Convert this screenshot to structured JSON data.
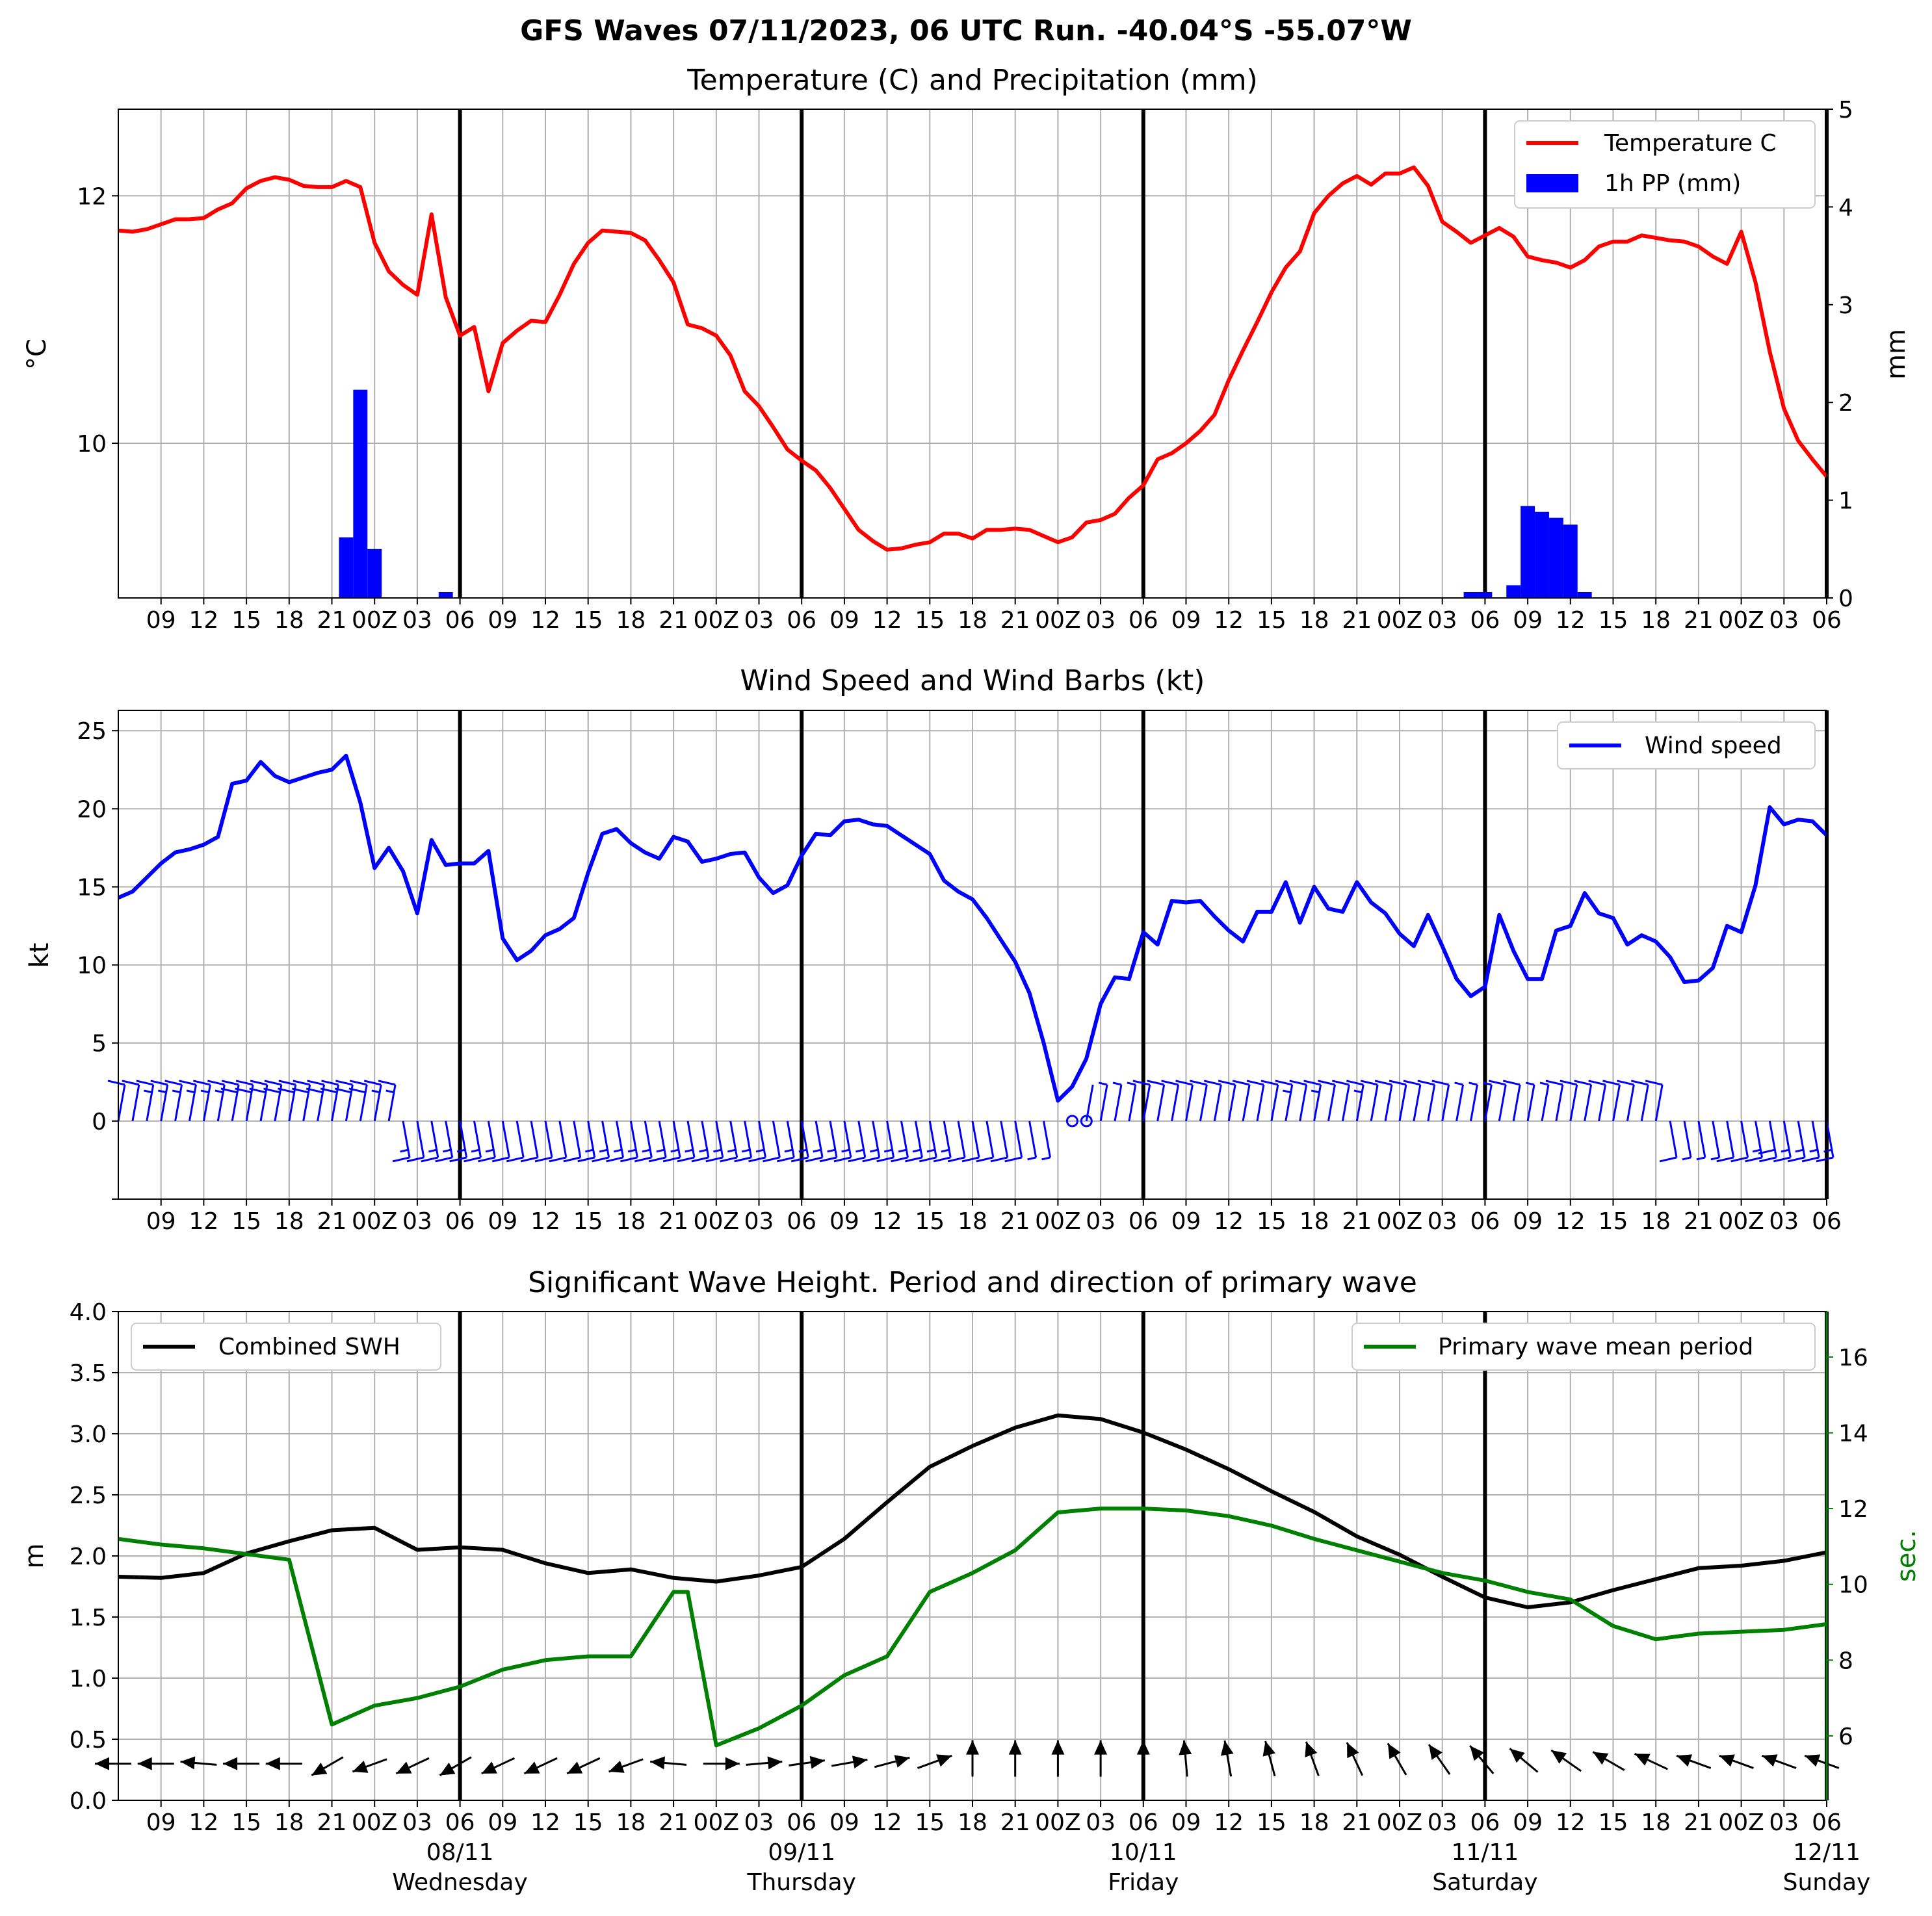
{
  "title": "GFS Waves 07/11/2023, 06 UTC Run. -40.04°S -55.07°W",
  "x_ticks": [
    "09",
    "12",
    "15",
    "18",
    "21",
    "00Z",
    "03",
    "06",
    "09",
    "12",
    "15",
    "18",
    "21",
    "00Z",
    "03",
    "06",
    "09",
    "12",
    "15",
    "18",
    "21",
    "00Z",
    "03",
    "06",
    "09",
    "12",
    "15",
    "18",
    "21",
    "00Z",
    "03",
    "06",
    "09",
    "12",
    "15",
    "18",
    "21",
    "00Z",
    "03",
    "06"
  ],
  "x_ticks_hours": [
    3,
    6,
    9,
    12,
    15,
    18,
    21,
    24,
    27,
    30,
    33,
    36,
    39,
    42,
    45,
    48,
    51,
    54,
    57,
    60,
    63,
    66,
    69,
    72,
    75,
    78,
    81,
    84,
    87,
    90,
    93,
    96,
    99,
    102,
    105,
    108,
    111,
    114,
    117,
    120
  ],
  "day_labels": [
    {
      "hour": 18,
      "date": "08/11",
      "day": "Wednesday"
    },
    {
      "hour": 42,
      "date": "09/11",
      "day": "Thursday"
    },
    {
      "hour": 66,
      "date": "10/11",
      "day": "Friday"
    },
    {
      "hour": 90,
      "date": "11/11",
      "day": "Saturday"
    },
    {
      "hour": 114,
      "date": "12/11",
      "day": "Sunday"
    }
  ],
  "chart_data": [
    {
      "type": "line",
      "title": "Temperature (C) and Precipitation (mm)",
      "ylabel": "°C",
      "ylabel_right": "mm",
      "ylim": [
        8.75,
        12.7
      ],
      "ylim_right": [
        0,
        5
      ],
      "yticks": [
        10,
        12
      ],
      "yticks_right": [
        0,
        1,
        2,
        3,
        4,
        5
      ],
      "grid": true,
      "legend": "top-right",
      "series": [
        {
          "name": "Temperature C",
          "color": "#ff0000",
          "x": [
            0,
            1,
            2,
            3,
            4,
            5,
            6,
            7,
            8,
            9,
            10,
            11,
            12,
            13,
            14,
            15,
            16,
            17,
            18,
            19,
            20,
            21,
            22,
            23,
            24,
            25,
            26,
            27,
            28,
            29,
            30,
            31,
            32,
            33,
            34,
            35,
            36,
            37,
            38,
            39,
            40,
            41,
            42,
            43,
            44,
            45,
            46,
            47,
            48,
            49,
            50,
            51,
            52,
            53,
            54,
            55,
            56,
            57,
            58,
            59,
            60,
            61,
            62,
            63,
            64,
            65,
            66,
            67,
            68,
            69,
            70,
            71,
            72,
            73,
            74,
            75,
            76,
            77,
            78,
            79,
            80,
            81,
            82,
            83,
            84,
            85,
            86,
            87,
            88,
            89,
            90,
            91,
            92,
            93,
            94,
            95,
            96,
            97,
            98,
            99,
            100,
            101,
            102,
            103,
            104,
            105,
            106,
            107,
            108,
            109,
            110,
            111,
            112,
            113,
            114,
            115,
            116,
            117,
            118,
            119,
            120
          ],
          "values": [
            11.72,
            11.71,
            11.73,
            11.77,
            11.81,
            11.81,
            11.82,
            11.89,
            11.94,
            12.06,
            12.12,
            12.15,
            12.13,
            12.08,
            12.07,
            12.07,
            12.12,
            12.07,
            11.62,
            11.39,
            11.28,
            11.2,
            11.85,
            11.18,
            10.87,
            10.94,
            10.42,
            10.81,
            10.91,
            10.99,
            10.98,
            11.2,
            11.45,
            11.62,
            11.72,
            11.71,
            11.7,
            11.64,
            11.48,
            11.3,
            10.96,
            10.93,
            10.87,
            10.71,
            10.42,
            10.3,
            10.13,
            9.95,
            9.86,
            9.78,
            9.64,
            9.47,
            9.3,
            9.21,
            9.14,
            9.15,
            9.18,
            9.2,
            9.27,
            9.27,
            9.23,
            9.3,
            9.3,
            9.31,
            9.3,
            9.25,
            9.2,
            9.24,
            9.36,
            9.38,
            9.43,
            9.56,
            9.66,
            9.87,
            9.92,
            10.0,
            10.1,
            10.23,
            10.51,
            10.75,
            10.98,
            11.22,
            11.42,
            11.55,
            11.86,
            12.0,
            12.1,
            12.16,
            12.09,
            12.18,
            12.18,
            12.23,
            12.08,
            11.79,
            11.71,
            11.62,
            11.68,
            11.74,
            11.67,
            11.51,
            11.48,
            11.46,
            11.42,
            11.48,
            11.59,
            11.63,
            11.63,
            11.68,
            11.66,
            11.64,
            11.63,
            11.59,
            11.51,
            11.45,
            11.71,
            11.3,
            10.74,
            10.28,
            10.02,
            9.87,
            9.73
          ]
        },
        {
          "name": "1h PP (mm)",
          "color": "#0000ff",
          "type": "bar",
          "x": [
            16,
            17,
            18,
            23,
            95,
            96,
            98,
            99,
            100,
            101,
            102,
            103
          ],
          "values": [
            0.62,
            2.13,
            0.5,
            0.06,
            0.06,
            0.06,
            0.13,
            0.94,
            0.88,
            0.82,
            0.75,
            0.06
          ]
        }
      ]
    },
    {
      "type": "line",
      "title": "Wind Speed and Wind Barbs (kt)",
      "ylabel": "kt",
      "ylim": [
        -5,
        26.3
      ],
      "yticks": [
        0,
        5,
        10,
        15,
        20,
        25
      ],
      "grid": true,
      "legend": "top-right",
      "series": [
        {
          "name": "Wind speed",
          "color": "#0000ff",
          "x": [
            0,
            1,
            2,
            3,
            4,
            5,
            6,
            7,
            8,
            9,
            10,
            11,
            12,
            13,
            14,
            15,
            16,
            17,
            18,
            19,
            20,
            21,
            22,
            23,
            24,
            25,
            26,
            27,
            28,
            29,
            30,
            31,
            32,
            33,
            34,
            35,
            36,
            37,
            38,
            39,
            40,
            41,
            42,
            43,
            44,
            45,
            46,
            47,
            48,
            49,
            50,
            51,
            52,
            53,
            54,
            55,
            56,
            57,
            58,
            59,
            60,
            61,
            62,
            63,
            64,
            65,
            66,
            67,
            68,
            69,
            70,
            71,
            72,
            73,
            74,
            75,
            76,
            77,
            78,
            79,
            80,
            81,
            82,
            83,
            84,
            85,
            86,
            87,
            88,
            89,
            90,
            91,
            92,
            93,
            94,
            95,
            96,
            97,
            98,
            99,
            100,
            101,
            102,
            103,
            104,
            105,
            106,
            107,
            108,
            109,
            110,
            111,
            112,
            113,
            114,
            115,
            116,
            117,
            118,
            119,
            120
          ],
          "values": [
            14.3,
            14.7,
            15.6,
            16.5,
            17.2,
            17.4,
            17.7,
            18.2,
            21.6,
            21.8,
            23.0,
            22.1,
            21.7,
            22.0,
            22.3,
            22.5,
            23.4,
            20.4,
            16.2,
            17.5,
            16.0,
            13.3,
            18.0,
            16.4,
            16.5,
            16.5,
            17.3,
            11.7,
            10.3,
            10.9,
            11.9,
            12.3,
            13.0,
            15.9,
            18.4,
            18.7,
            17.8,
            17.2,
            16.8,
            18.2,
            17.9,
            16.6,
            16.8,
            17.1,
            17.2,
            15.6,
            14.6,
            15.1,
            17.0,
            18.4,
            18.3,
            19.2,
            19.3,
            19.0,
            18.9,
            18.3,
            17.7,
            17.1,
            15.4,
            14.7,
            14.2,
            13.0,
            11.6,
            10.2,
            8.2,
            5.0,
            1.3,
            2.2,
            4.0,
            7.5,
            9.2,
            9.1,
            12.1,
            11.3,
            14.1,
            14.0,
            14.1,
            13.1,
            12.2,
            11.5,
            13.4,
            13.4,
            15.3,
            12.7,
            15.0,
            13.6,
            13.4,
            15.3,
            14.0,
            13.3,
            12.0,
            11.2,
            13.2,
            11.2,
            9.1,
            8.0,
            8.6,
            13.2,
            10.9,
            9.1,
            9.1,
            12.2,
            12.5,
            14.6,
            13.3,
            13.0,
            11.3,
            11.9,
            11.5,
            10.5,
            8.9,
            9.0,
            9.8,
            12.5,
            12.1,
            15.1,
            20.1,
            19.0,
            19.3,
            19.2,
            18.3
          ]
        }
      ]
    },
    {
      "type": "line",
      "title": "Significant Wave Height. Period and direction of primary wave",
      "ylabel": "m",
      "ylabel_right": "sec.",
      "ylim": [
        0,
        4.0
      ],
      "ylim_right": [
        4.3,
        17.2
      ],
      "yticks": [
        0.0,
        0.5,
        1.0,
        1.5,
        2.0,
        2.5,
        3.0,
        3.5,
        4.0
      ],
      "yticks_right": [
        6,
        8,
        10,
        12,
        14,
        16
      ],
      "grid": true,
      "series": [
        {
          "name": "Combined SWH",
          "color": "#000000",
          "legend": "top-left",
          "x": [
            0,
            3,
            6,
            9,
            12,
            15,
            18,
            21,
            24,
            27,
            30,
            33,
            36,
            39,
            42,
            45,
            48,
            51,
            54,
            57,
            60,
            63,
            66,
            69,
            72,
            75,
            78,
            81,
            84,
            87,
            90,
            93,
            96,
            99,
            102,
            105,
            108,
            111,
            114,
            117,
            120
          ],
          "values": [
            1.83,
            1.82,
            1.86,
            2.02,
            2.12,
            2.21,
            2.23,
            2.05,
            2.07,
            2.05,
            1.94,
            1.86,
            1.89,
            1.82,
            1.79,
            1.84,
            1.91,
            2.14,
            2.44,
            2.73,
            2.9,
            3.05,
            3.15,
            3.12,
            3.01,
            2.87,
            2.71,
            2.53,
            2.36,
            2.16,
            2.01,
            1.83,
            1.66,
            1.58,
            1.62,
            1.72,
            1.81,
            1.9,
            1.92,
            1.96,
            2.03
          ]
        },
        {
          "name": "Primary wave mean period",
          "color": "#008000",
          "legend": "top-right",
          "axis": "right",
          "x": [
            0,
            3,
            6,
            9,
            12,
            15,
            18,
            21,
            24,
            27,
            30,
            33,
            36,
            39,
            40,
            42,
            45,
            48,
            51,
            54,
            57,
            60,
            63,
            66,
            69,
            72,
            75,
            78,
            81,
            84,
            87,
            90,
            93,
            96,
            99,
            102,
            105,
            108,
            111,
            114,
            117,
            120
          ],
          "values": [
            11.2,
            11.05,
            10.95,
            10.8,
            10.65,
            6.3,
            6.8,
            7.0,
            7.3,
            7.75,
            8.0,
            8.1,
            8.1,
            9.8,
            9.8,
            5.75,
            6.2,
            6.8,
            7.6,
            8.1,
            9.8,
            10.3,
            10.9,
            11.9,
            12.0,
            12.0,
            11.95,
            11.8,
            11.55,
            11.2,
            10.9,
            10.6,
            10.3,
            10.1,
            9.8,
            9.6,
            8.9,
            8.55,
            8.7,
            8.75,
            8.8,
            8.95
          ]
        }
      ],
      "direction_arrows": {
        "x": [
          0,
          3,
          6,
          9,
          12,
          15,
          18,
          21,
          24,
          27,
          30,
          33,
          36,
          39,
          42,
          45,
          48,
          51,
          54,
          57,
          60,
          63,
          66,
          69,
          72,
          75,
          78,
          81,
          84,
          87,
          90,
          93,
          96,
          99,
          102,
          105,
          108,
          111,
          114,
          117,
          120
        ],
        "angle_deg": [
          180,
          180,
          175,
          180,
          180,
          210,
          200,
          205,
          210,
          205,
          205,
          205,
          200,
          175,
          0,
          5,
          8,
          10,
          15,
          20,
          90,
          90,
          90,
          90,
          90,
          95,
          100,
          105,
          110,
          115,
          120,
          125,
          130,
          140,
          145,
          150,
          155,
          160,
          160,
          160,
          160
        ]
      }
    }
  ]
}
